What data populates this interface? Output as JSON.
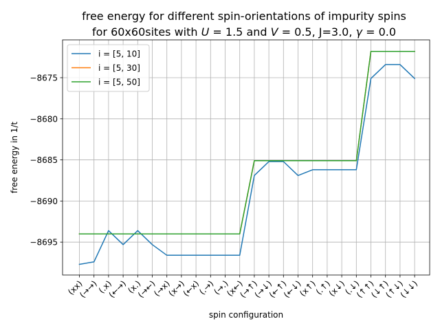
{
  "chart_data": {
    "type": "line",
    "title_line1": "free energy for different spin-orientations of impurity spins",
    "title_line2_prefix": "for 60x60sites with ",
    "title_U_symbol": "U",
    "title_U_value": " = 1.5 and ",
    "title_V_symbol": "V",
    "title_V_value": " = 0.5, J=3.0, ",
    "title_gamma_symbol": "γ",
    "title_gamma_value": " = 0.0",
    "xlabel": "spin configuration",
    "ylabel": "free energy in 1/t",
    "categories": [
      "(xx)",
      "(→→)",
      "(.x)",
      "(←→)",
      "(x.)",
      "(→←)",
      "(→x)",
      "(x→)",
      "(←x)",
      "(.→)",
      "(→.)",
      "(x←)",
      "(→↑)",
      "(→↓)",
      "(←↑)",
      "(←↓)",
      "(x↑)",
      "(.↑)",
      "(x↓)",
      "(.↓)",
      "(↑↑)",
      "(↓↑)",
      "(↑↓)",
      "(↓↓)"
    ],
    "ylim": [
      -8699.0,
      -8670.4
    ],
    "yticks": [
      -8695,
      -8690,
      -8685,
      -8680,
      -8675
    ],
    "ytick_labels": [
      "−8695",
      "−8690",
      "−8685",
      "−8680",
      "−8675"
    ],
    "grid": true,
    "legend_position": "top-left",
    "series": [
      {
        "name": "i = [5, 10]",
        "color": "#1f77b4",
        "values": [
          -8697.7,
          -8697.4,
          -8693.6,
          -8695.3,
          -8693.6,
          -8695.3,
          -8696.6,
          -8696.6,
          -8696.6,
          -8696.6,
          -8696.6,
          -8696.6,
          -8686.9,
          -8685.2,
          -8685.2,
          -8686.9,
          -8686.2,
          -8686.2,
          -8686.2,
          -8686.2,
          -8675.1,
          -8673.4,
          -8673.4,
          -8675.1
        ]
      },
      {
        "name": "i = [5, 30]",
        "color": "#ff7f0e",
        "values": [
          -8694.0,
          -8694.0,
          -8694.0,
          -8694.0,
          -8694.0,
          -8694.0,
          -8694.0,
          -8694.0,
          -8694.0,
          -8694.0,
          -8694.0,
          -8694.0,
          -8685.1,
          -8685.1,
          -8685.1,
          -8685.1,
          -8685.1,
          -8685.1,
          -8685.1,
          -8685.1,
          -8671.8,
          -8671.8,
          -8671.8,
          -8671.8
        ]
      },
      {
        "name": "i = [5, 50]",
        "color": "#2ca02c",
        "values": [
          -8694.0,
          -8694.0,
          -8694.0,
          -8694.0,
          -8694.0,
          -8694.0,
          -8694.0,
          -8694.0,
          -8694.0,
          -8694.0,
          -8694.0,
          -8694.0,
          -8685.1,
          -8685.1,
          -8685.1,
          -8685.1,
          -8685.1,
          -8685.1,
          -8685.1,
          -8685.1,
          -8671.8,
          -8671.8,
          -8671.8,
          -8671.8
        ]
      }
    ]
  }
}
